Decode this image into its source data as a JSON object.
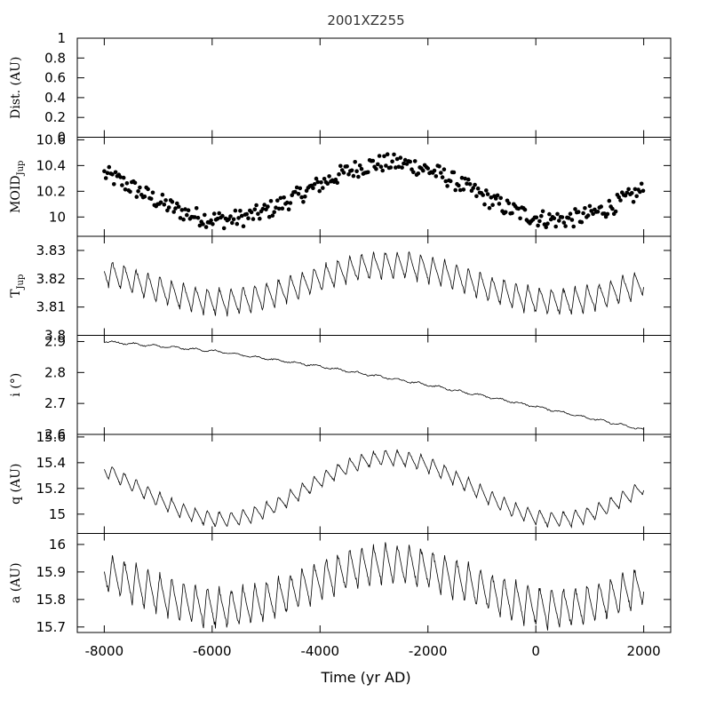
{
  "title": "2001XZ255",
  "xlabel": "Time (yr AD)",
  "chart_data": [
    {
      "type": "scatter",
      "ylabel_text": "Dist. (AU)",
      "ylabel_sub": "",
      "ylim": [
        0,
        1
      ],
      "yticks": [
        "0",
        "0.2",
        "0.4",
        "0.6",
        "0.8",
        "1"
      ],
      "series": []
    },
    {
      "type": "scatter",
      "ylabel_text": "MOID",
      "ylabel_sub": "Jup",
      "ylim": [
        9.85,
        10.62
      ],
      "yticks": [
        "10",
        "10.2",
        "10.4",
        "10.6"
      ],
      "trend": {
        "mean": 10.2,
        "amp": 0.22,
        "period": 6200,
        "peak_year": -2700
      },
      "noise": 0.07
    },
    {
      "type": "line",
      "ylabel_text": "T",
      "ylabel_sub": "Jup",
      "ylim": [
        3.8,
        3.835
      ],
      "yticks": [
        "3.8",
        "3.81",
        "3.82",
        "3.83"
      ],
      "trend": {
        "mean": 3.8185,
        "amp": 0.0065,
        "period": 6200,
        "peak_year": -2700
      },
      "oscillation": {
        "amp": 0.0055,
        "period": 220
      }
    },
    {
      "type": "line",
      "ylabel_text": "i (°)",
      "ylabel_sub": "",
      "ylim": [
        2.6,
        2.92
      ],
      "yticks": [
        "2.6",
        "2.7",
        "2.8",
        "2.9"
      ],
      "points": [
        [
          -8000,
          2.9
        ],
        [
          -6000,
          2.87
        ],
        [
          -4000,
          2.82
        ],
        [
          -2000,
          2.76
        ],
        [
          0,
          2.69
        ],
        [
          2000,
          2.615
        ]
      ]
    },
    {
      "type": "line",
      "ylabel_text": "q (AU)",
      "ylabel_sub": "",
      "ylim": [
        14.85,
        15.62
      ],
      "yticks": [
        "15",
        "15.2",
        "15.4",
        "15.6"
      ],
      "trend": {
        "mean": 15.2,
        "amp": 0.24,
        "period": 6200,
        "peak_year": -2700
      },
      "oscillation": {
        "amp": 0.07,
        "period": 220
      }
    },
    {
      "type": "line",
      "ylabel_text": "a (AU)",
      "ylabel_sub": "",
      "ylim": [
        15.68,
        16.04
      ],
      "yticks": [
        "15.7",
        "15.8",
        "15.9",
        "16"
      ],
      "trend": {
        "mean": 15.85,
        "amp": 0.08,
        "period": 6200,
        "peak_year": -2700
      },
      "oscillation": {
        "amp": 0.085,
        "period": 220
      }
    }
  ],
  "xlim": [
    -8500,
    2500
  ],
  "xrange_data": [
    -8000,
    2000
  ],
  "xticks": [
    "-8000",
    "-6000",
    "-4000",
    "-2000",
    "0",
    "2000"
  ]
}
